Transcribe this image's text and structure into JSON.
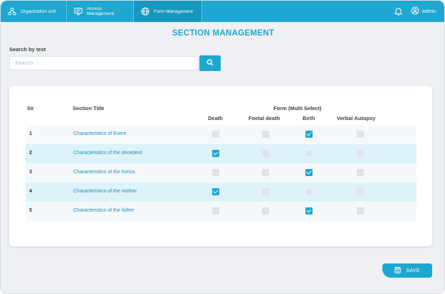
{
  "nav": {
    "items": [
      {
        "label": "Organization unit",
        "icon": "org-icon"
      },
      {
        "label": "Access Management",
        "icon": "monitor-icon"
      },
      {
        "label": "Form Management",
        "icon": "globe-icon"
      }
    ],
    "user_label": "admin"
  },
  "page_title": "SECTION MANAGEMENT",
  "search": {
    "label": "Search by text",
    "placeholder": "Search . . . ."
  },
  "table": {
    "headers": {
      "num": "S#",
      "title": "Section Title",
      "form_group": "Form (Multi Select)",
      "death": "Death",
      "foetal": "Foetal death",
      "birth": "Birth",
      "autopsy": "Verbal Autopsy"
    },
    "rows": [
      {
        "num": "1",
        "title": "Characteristics of Event",
        "death": false,
        "foetal": false,
        "birth": true,
        "autopsy": false
      },
      {
        "num": "2",
        "title": "Characteristics of the decedent",
        "death": true,
        "foetal": false,
        "birth": false,
        "autopsy": false
      },
      {
        "num": "3",
        "title": "Characteristics of the foetus",
        "death": false,
        "foetal": false,
        "birth": true,
        "autopsy": false
      },
      {
        "num": "4",
        "title": "Characteristics of the mother",
        "death": true,
        "foetal": false,
        "birth": false,
        "autopsy": false
      },
      {
        "num": "5",
        "title": "Characteristics of the father",
        "death": false,
        "foetal": false,
        "birth": true,
        "autopsy": false
      }
    ]
  },
  "save_label": "SAVE",
  "colors": {
    "accent": "#1ea7d1",
    "row_alt": "#def2fa"
  }
}
